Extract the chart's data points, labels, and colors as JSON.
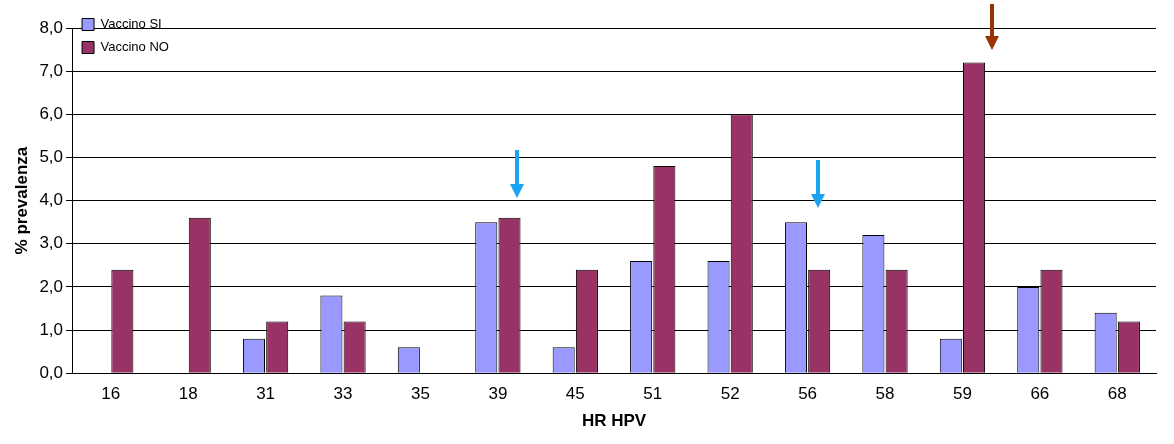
{
  "chart_data": {
    "type": "bar",
    "xlabel": "HR HPV",
    "ylabel": "% prevalenza",
    "categories": [
      "16",
      "18",
      "31",
      "33",
      "35",
      "39",
      "45",
      "51",
      "52",
      "56",
      "58",
      "59",
      "66",
      "68"
    ],
    "series": [
      {
        "name": "Vaccino SI",
        "color": "#9999ff",
        "values": [
          0,
          0,
          0.8,
          1.8,
          0.6,
          3.5,
          0.6,
          2.6,
          2.6,
          3.5,
          3.2,
          0.8,
          2.0,
          1.4
        ]
      },
      {
        "name": "Vaccino NO",
        "color": "#993366",
        "values": [
          2.4,
          3.6,
          1.2,
          1.2,
          0,
          3.6,
          2.4,
          4.8,
          6.0,
          2.4,
          2.4,
          7.2,
          2.4,
          1.2
        ]
      }
    ],
    "ylim": [
      0,
      8
    ],
    "yticks": [
      {
        "value": 0,
        "label": "0,0"
      },
      {
        "value": 1,
        "label": "1,0"
      },
      {
        "value": 2,
        "label": "2,0"
      },
      {
        "value": 3,
        "label": "3,0"
      },
      {
        "value": 4,
        "label": "4,0"
      },
      {
        "value": 5,
        "label": "5,0"
      },
      {
        "value": 6,
        "label": "6,0"
      },
      {
        "value": 7,
        "label": "7,0"
      },
      {
        "value": 8,
        "label": "8,0"
      }
    ],
    "grid": "y",
    "legend": "top left"
  }
}
